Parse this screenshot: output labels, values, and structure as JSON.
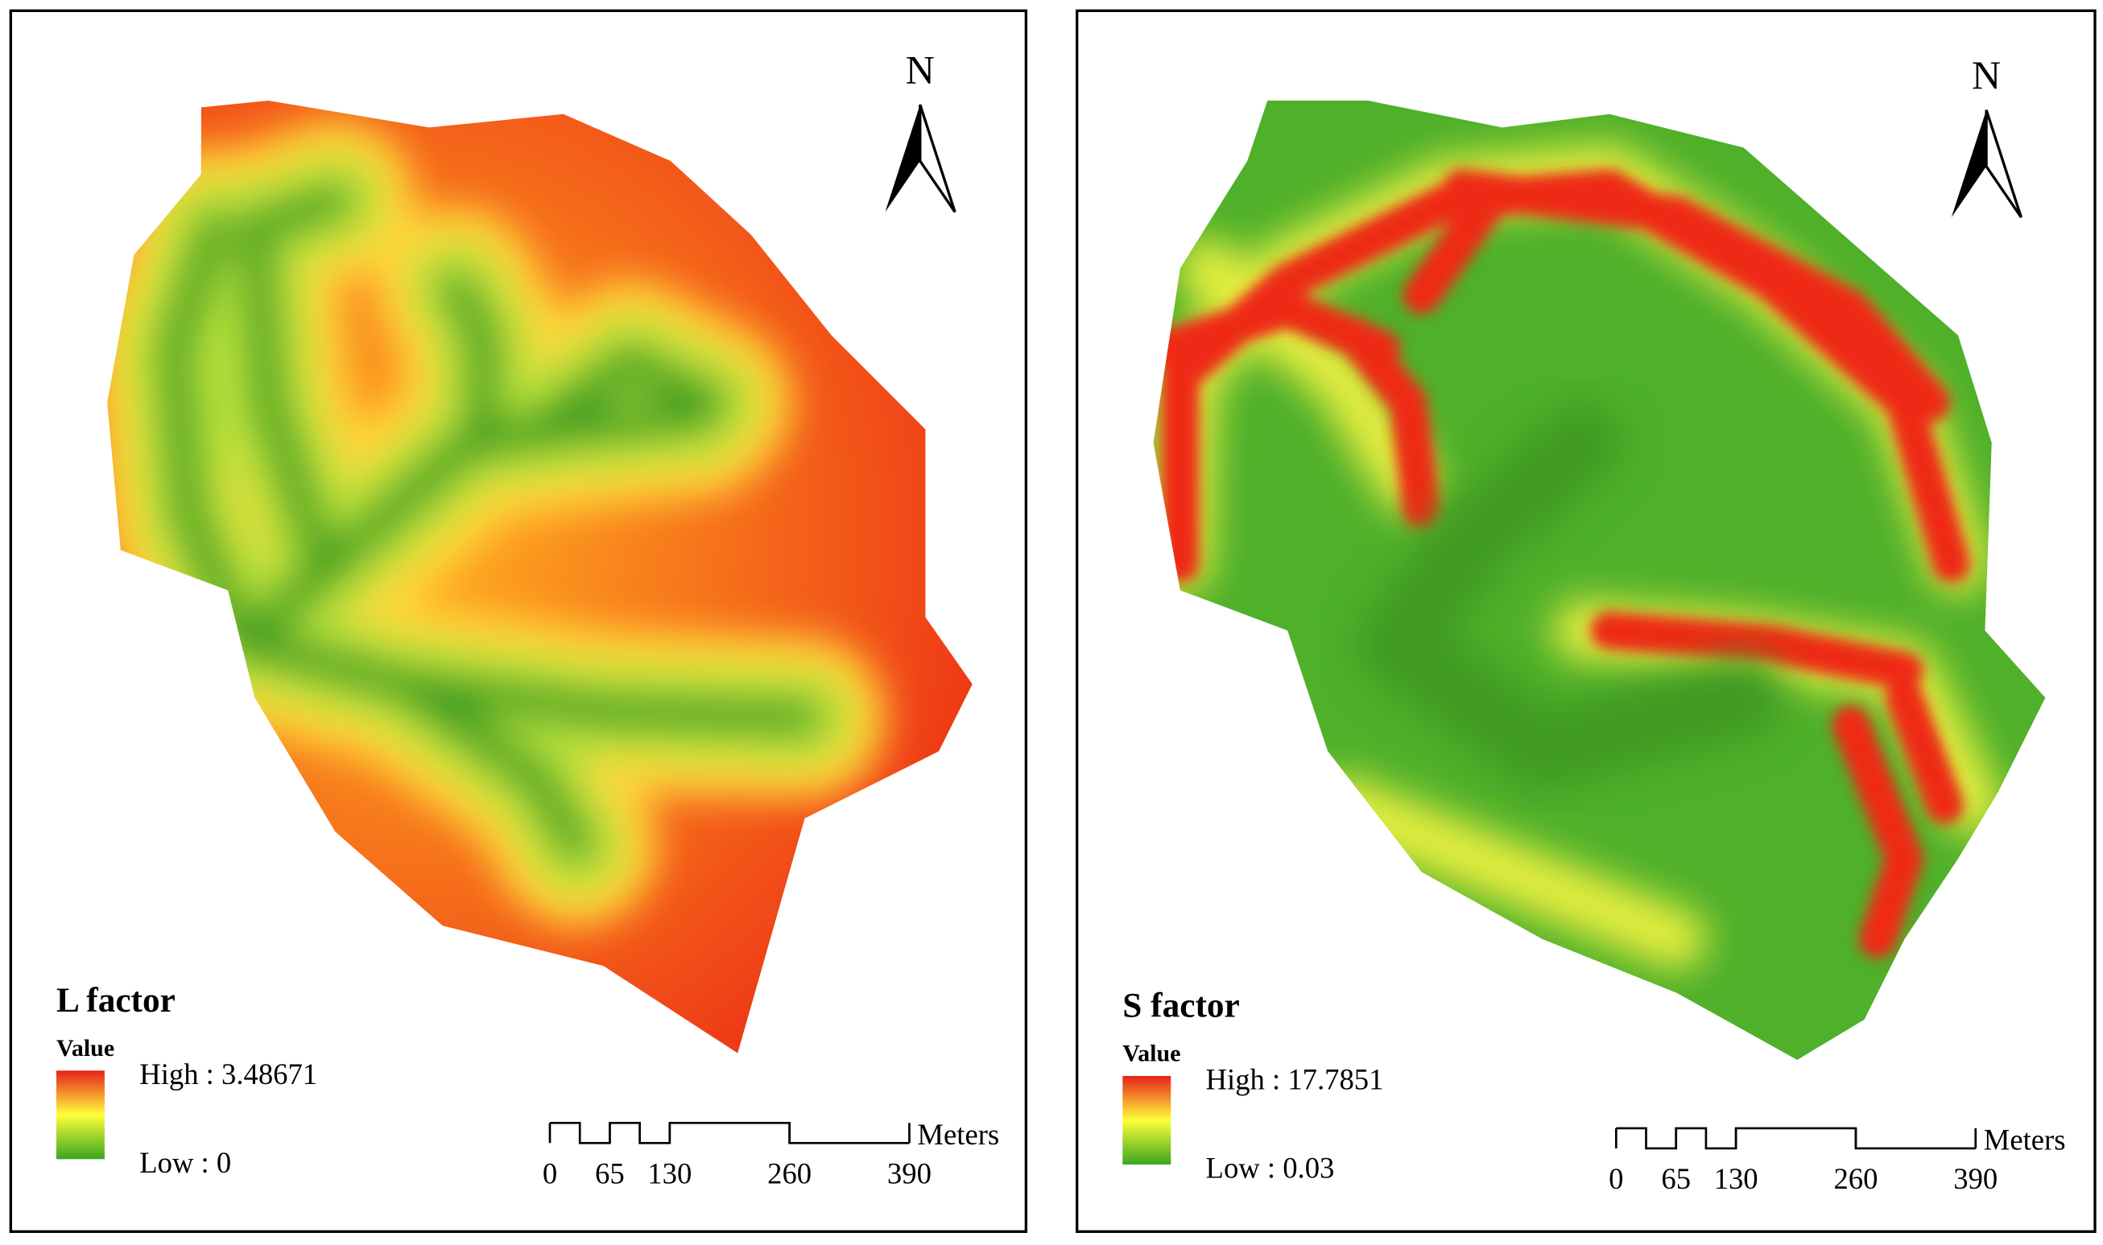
{
  "panels": [
    {
      "title": "L factor",
      "legend_label": "Value",
      "high_label": "High : 3.48671",
      "low_label": "Low : 0",
      "north": "N",
      "scale_ticks": [
        0,
        65,
        130,
        260,
        390
      ],
      "scale_unit": "Meters"
    },
    {
      "title": "S factor",
      "legend_label": "Value",
      "high_label": "High : 17.7851",
      "low_label": "Low : 0.03",
      "north": "N",
      "scale_ticks": [
        0,
        65,
        130,
        260,
        390
      ],
      "scale_unit": "Meters"
    }
  ]
}
